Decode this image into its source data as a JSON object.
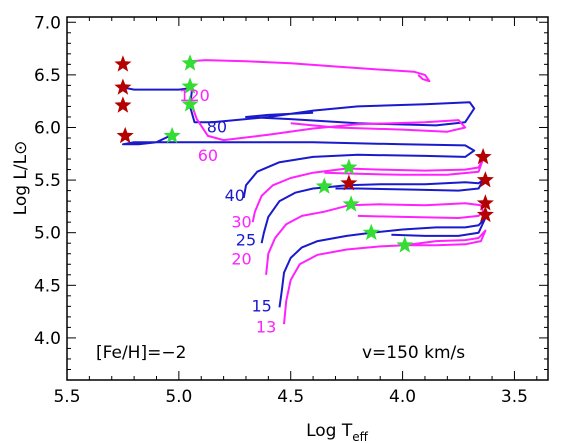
{
  "chart_data": {
    "type": "line",
    "xlabel": "Log T_eff",
    "ylabel": "Log L/L⊙",
    "xlim": [
      5.5,
      3.35
    ],
    "ylim": [
      3.6,
      7.05
    ],
    "x_reversed": true,
    "x_ticks": [
      5.5,
      5.0,
      4.5,
      4.0,
      3.5
    ],
    "x_tick_labels": [
      "5.5",
      "5.0",
      "4.5",
      "4.0",
      "3.5"
    ],
    "y_ticks": [
      4.0,
      4.5,
      5.0,
      5.5,
      6.0,
      6.5,
      7.0
    ],
    "y_tick_labels": [
      "4.0",
      "4.5",
      "5.0",
      "5.5",
      "6.0",
      "6.5",
      "7.0"
    ],
    "grid": false,
    "annotations": [
      {
        "text": "[Fe/H]=−2",
        "position": "bottom-left"
      },
      {
        "text": "v=150 km/s",
        "position": "bottom-right"
      }
    ],
    "colors": {
      "blue": "#1a1acc",
      "magenta": "#ff22ff",
      "red_star": "#b40000",
      "green_star": "#33dd33"
    },
    "series": [
      {
        "mass_label": "120",
        "color": "magenta",
        "label_at": [
          4.93,
          6.25
        ],
        "points": [
          [
            4.95,
            6.63
          ],
          [
            4.88,
            6.64
          ],
          [
            4.7,
            6.63
          ],
          [
            4.5,
            6.61
          ],
          [
            4.3,
            6.58
          ],
          [
            4.1,
            6.55
          ],
          [
            3.95,
            6.53
          ],
          [
            3.9,
            6.5
          ],
          [
            3.88,
            6.44
          ],
          [
            3.91,
            6.46
          ],
          [
            3.93,
            6.5
          ]
        ]
      },
      {
        "mass_label": "80",
        "color": "blue",
        "label_at": [
          4.83,
          5.95
        ],
        "points": [
          [
            5.25,
            6.38
          ],
          [
            5.2,
            6.36
          ],
          [
            5.1,
            6.36
          ],
          [
            5.0,
            6.36
          ],
          [
            4.96,
            6.37
          ],
          [
            4.94,
            6.38
          ],
          [
            4.95,
            6.2
          ],
          [
            4.93,
            6.05
          ],
          [
            4.85,
            6.05
          ],
          [
            4.6,
            6.1
          ],
          [
            4.4,
            6.16
          ],
          [
            4.2,
            6.2
          ],
          [
            3.9,
            6.22
          ],
          [
            3.7,
            6.24
          ],
          [
            3.68,
            6.18
          ],
          [
            3.72,
            6.05
          ],
          [
            3.85,
            6.02
          ],
          [
            4.2,
            6.04
          ],
          [
            4.5,
            6.08
          ],
          [
            4.7,
            6.1
          ],
          [
            4.6,
            6.12
          ],
          [
            4.4,
            6.14
          ]
        ]
      },
      {
        "mass_label": "60",
        "color": "magenta",
        "label_at": [
          4.87,
          5.68
        ],
        "points": [
          [
            4.94,
            6.2
          ],
          [
            4.92,
            6.08
          ],
          [
            4.87,
            5.92
          ],
          [
            4.8,
            5.88
          ],
          [
            4.6,
            5.93
          ],
          [
            4.4,
            5.99
          ],
          [
            4.2,
            6.03
          ],
          [
            3.9,
            6.05
          ],
          [
            3.75,
            6.07
          ],
          [
            3.72,
            6.0
          ],
          [
            3.8,
            5.96
          ],
          [
            4.0,
            5.98
          ],
          [
            4.3,
            6.0
          ],
          [
            4.5,
            6.04
          ]
        ]
      },
      {
        "mass_label": "40",
        "color": "blue",
        "label_at": [
          4.75,
          5.3
        ],
        "points": [
          [
            5.04,
            5.92
          ],
          [
            5.1,
            5.86
          ],
          [
            5.18,
            5.84
          ],
          [
            5.25,
            5.84
          ],
          [
            5.2,
            5.86
          ],
          [
            5.08,
            5.86
          ],
          [
            5.0,
            5.86
          ],
          [
            4.9,
            5.86
          ],
          [
            4.7,
            5.86
          ],
          [
            4.4,
            5.86
          ],
          [
            4.0,
            5.84
          ],
          [
            3.72,
            5.83
          ],
          [
            3.68,
            5.78
          ],
          [
            3.72,
            5.72
          ],
          [
            3.9,
            5.73
          ],
          [
            4.2,
            5.74
          ],
          [
            4.4,
            5.72
          ],
          [
            4.55,
            5.67
          ],
          [
            4.65,
            5.58
          ],
          [
            4.7,
            5.45
          ],
          [
            4.71,
            5.33
          ]
        ]
      },
      {
        "mass_label": "30",
        "color": "magenta",
        "label_at": [
          4.72,
          5.05
        ],
        "points": [
          [
            4.67,
            5.1
          ],
          [
            4.66,
            5.2
          ],
          [
            4.63,
            5.35
          ],
          [
            4.58,
            5.45
          ],
          [
            4.5,
            5.52
          ],
          [
            4.4,
            5.57
          ],
          [
            4.25,
            5.61
          ],
          [
            4.1,
            5.6
          ],
          [
            3.9,
            5.59
          ],
          [
            3.72,
            5.6
          ],
          [
            3.66,
            5.62
          ],
          [
            3.64,
            5.7
          ],
          [
            3.66,
            5.58
          ],
          [
            3.8,
            5.55
          ],
          [
            4.0,
            5.55
          ],
          [
            4.2,
            5.56
          ],
          [
            4.35,
            5.57
          ]
        ]
      },
      {
        "mass_label": "25",
        "color": "blue",
        "label_at": [
          4.7,
          4.88
        ],
        "points": [
          [
            4.63,
            4.9
          ],
          [
            4.62,
            5.0
          ],
          [
            4.6,
            5.15
          ],
          [
            4.55,
            5.3
          ],
          [
            4.48,
            5.38
          ],
          [
            4.4,
            5.42
          ],
          [
            4.35,
            5.43
          ],
          [
            4.25,
            5.45
          ],
          [
            4.1,
            5.46
          ],
          [
            3.9,
            5.46
          ],
          [
            3.72,
            5.48
          ],
          [
            3.66,
            5.47
          ],
          [
            3.64,
            5.5
          ],
          [
            3.66,
            5.42
          ],
          [
            3.75,
            5.4
          ],
          [
            3.95,
            5.41
          ],
          [
            4.2,
            5.42
          ],
          [
            4.3,
            5.42
          ]
        ]
      },
      {
        "mass_label": "20",
        "color": "magenta",
        "label_at": [
          4.72,
          4.7
        ],
        "points": [
          [
            4.61,
            4.6
          ],
          [
            4.6,
            4.8
          ],
          [
            4.57,
            4.95
          ],
          [
            4.52,
            5.08
          ],
          [
            4.45,
            5.16
          ],
          [
            4.35,
            5.2
          ],
          [
            4.24,
            5.26
          ],
          [
            4.1,
            5.27
          ],
          [
            3.9,
            5.26
          ],
          [
            3.72,
            5.28
          ],
          [
            3.65,
            5.26
          ],
          [
            3.64,
            5.2
          ],
          [
            3.66,
            5.16
          ],
          [
            3.75,
            5.14
          ],
          [
            4.0,
            5.15
          ],
          [
            4.2,
            5.16
          ]
        ]
      },
      {
        "mass_label": "15",
        "color": "blue",
        "label_at": [
          4.63,
          4.25
        ],
        "points": [
          [
            4.55,
            4.29
          ],
          [
            4.54,
            4.45
          ],
          [
            4.53,
            4.62
          ],
          [
            4.5,
            4.76
          ],
          [
            4.45,
            4.86
          ],
          [
            4.38,
            4.92
          ],
          [
            4.25,
            4.97
          ],
          [
            4.14,
            5.0
          ],
          [
            4.0,
            5.03
          ],
          [
            3.85,
            5.05
          ],
          [
            3.72,
            5.05
          ],
          [
            3.66,
            5.07
          ],
          [
            3.63,
            5.14
          ],
          [
            3.66,
            5.0
          ],
          [
            3.75,
            4.97
          ],
          [
            3.9,
            4.97
          ],
          [
            4.05,
            4.98
          ]
        ]
      },
      {
        "mass_label": "13",
        "color": "magenta",
        "label_at": [
          4.61,
          4.05
        ],
        "points": [
          [
            4.53,
            4.13
          ],
          [
            4.52,
            4.35
          ],
          [
            4.5,
            4.55
          ],
          [
            4.46,
            4.7
          ],
          [
            4.38,
            4.79
          ],
          [
            4.25,
            4.84
          ],
          [
            4.1,
            4.87
          ],
          [
            3.99,
            4.88
          ],
          [
            3.85,
            4.92
          ],
          [
            3.72,
            4.93
          ],
          [
            3.66,
            4.95
          ],
          [
            3.63,
            5.02
          ],
          [
            3.65,
            4.92
          ],
          [
            3.72,
            4.89
          ],
          [
            3.85,
            4.88
          ],
          [
            3.99,
            4.88
          ]
        ]
      }
    ],
    "stars": {
      "red": [
        [
          5.25,
          6.6
        ],
        [
          5.25,
          6.38
        ],
        [
          5.25,
          6.21
        ],
        [
          5.24,
          5.92
        ],
        [
          4.24,
          5.47
        ],
        [
          3.64,
          5.72
        ],
        [
          3.63,
          5.5
        ],
        [
          3.63,
          5.28
        ],
        [
          3.63,
          5.17
        ]
      ],
      "green": [
        [
          4.95,
          6.61
        ],
        [
          4.95,
          6.39
        ],
        [
          4.95,
          6.22
        ],
        [
          5.03,
          5.92
        ],
        [
          4.24,
          5.62
        ],
        [
          4.35,
          5.44
        ],
        [
          4.23,
          5.27
        ],
        [
          4.14,
          5.0
        ],
        [
          3.99,
          4.88
        ]
      ]
    }
  }
}
